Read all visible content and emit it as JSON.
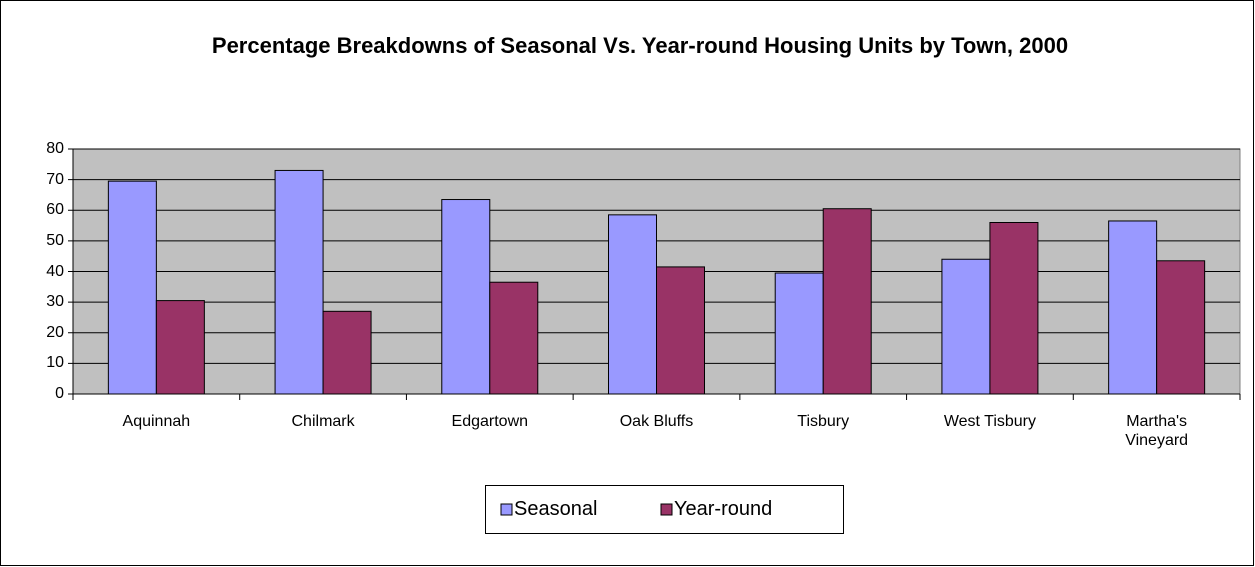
{
  "chart_data": {
    "type": "bar",
    "title": "Percentage Breakdowns of Seasonal Vs. Year-round Housing Units by Town, 2000",
    "categories": [
      "Aquinnah",
      "Chilmark",
      "Edgartown",
      "Oak Bluffs",
      "Tisbury",
      "West Tisbury",
      "Martha's Vineyard"
    ],
    "series": [
      {
        "name": "Seasonal",
        "color": "#9999ff",
        "values": [
          69.5,
          73,
          63.5,
          58.5,
          39.5,
          44,
          56.5
        ]
      },
      {
        "name": "Year-round",
        "color": "#993366",
        "values": [
          30.5,
          27,
          36.5,
          41.5,
          60.5,
          56,
          43.5
        ]
      }
    ],
    "ylim": [
      0,
      80
    ],
    "yticks": [
      0,
      10,
      20,
      30,
      40,
      50,
      60,
      70,
      80
    ],
    "grid": true,
    "legend": "bottom"
  }
}
